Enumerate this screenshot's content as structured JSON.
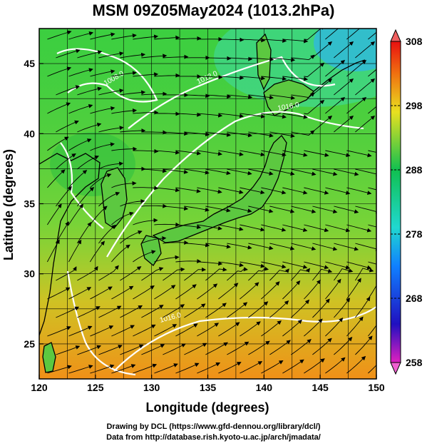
{
  "title": "MSM 09Z05May2024 (1013.2hPa)",
  "x_axis": {
    "label": "Longitude (degrees)",
    "range": [
      120,
      150
    ],
    "ticks": [
      "120",
      "125",
      "130",
      "135",
      "140",
      "145",
      "150"
    ]
  },
  "y_axis": {
    "label": "Latitude  (degrees)",
    "range": [
      22.5,
      47.5
    ],
    "ticks": [
      "25",
      "30",
      "35",
      "40",
      "45"
    ]
  },
  "colorbar": {
    "range": [
      258,
      308
    ],
    "ticks": [
      "258",
      "268",
      "278",
      "288",
      "298",
      "308"
    ],
    "colors": [
      "#e020c0",
      "#2010c0",
      "#1080ff",
      "#20d8d0",
      "#10c050",
      "#e8e020",
      "#f07010",
      "#e81010"
    ]
  },
  "contours": {
    "labels": [
      "1008.0",
      "1012.0",
      "1016.0",
      "1016.0"
    ]
  },
  "credits": {
    "line1": "Drawing by DCL (https://www.gfd-dennou.org/library/dcl/)",
    "line2": "Data from http://database.rish.kyoto-u.ac.jp/arch/jmadata/"
  }
}
